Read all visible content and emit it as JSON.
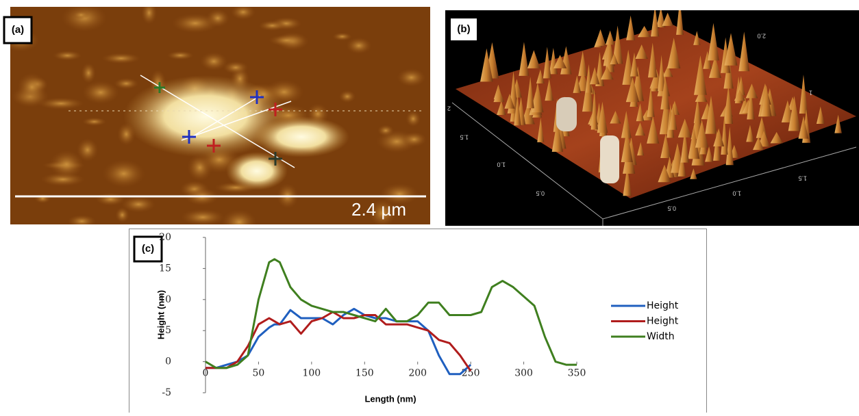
{
  "panels": {
    "a": {
      "label": "(a)",
      "scale_bar": "2.4 µm"
    },
    "b": {
      "label": "(b)",
      "axis_labels_left": [
        "2",
        "1.5",
        "1.0",
        "0.5"
      ],
      "axis_labels_bottom": [
        "0.5",
        "1.0",
        "1.5"
      ],
      "axis_labels_right": [
        "2.0",
        "1"
      ]
    },
    "c": {
      "label": "(c)"
    }
  },
  "chart_data": {
    "type": "line",
    "x_label": "Length (nm)",
    "y_label": "Height (nm)",
    "x": [
      0,
      10,
      20,
      30,
      40,
      50,
      60,
      65,
      70,
      80,
      90,
      100,
      110,
      120,
      130,
      140,
      150,
      160,
      170,
      180,
      190,
      200,
      210,
      220,
      230,
      240,
      250,
      260,
      270,
      280,
      290,
      300,
      310,
      320,
      330,
      340,
      350
    ],
    "series": [
      {
        "name": "Height",
        "color": "#1f5fbf",
        "values": [
          -1,
          -1,
          -0.5,
          0,
          1,
          4,
          5.5,
          6,
          6,
          8.3,
          7,
          7,
          7,
          6,
          7.5,
          8.5,
          7.5,
          7,
          7,
          6.5,
          6.5,
          6.5,
          5,
          1,
          -2,
          -2,
          -0.5,
          null,
          null,
          null,
          null,
          null,
          null,
          null,
          null,
          null,
          null
        ]
      },
      {
        "name": "Height",
        "color": "#b01c1c",
        "values": [
          -1,
          -1,
          -1,
          0,
          2.5,
          6,
          7,
          6.5,
          6,
          6.5,
          4.5,
          6.5,
          7,
          8,
          7,
          7,
          7.5,
          7.5,
          6,
          6,
          6,
          5.5,
          5,
          3.5,
          3,
          1,
          -1.5,
          null,
          null,
          null,
          null,
          null,
          null,
          null,
          null,
          null,
          null
        ]
      },
      {
        "name": "Width",
        "color": "#3f7f1f",
        "values": [
          0,
          -1,
          -1,
          -0.5,
          1,
          10,
          16,
          16.5,
          16,
          12,
          10,
          9,
          8.5,
          8,
          8,
          7.5,
          7,
          6.5,
          8.5,
          6.5,
          6.5,
          7.5,
          9.5,
          9.5,
          7.5,
          7.5,
          7.5,
          8,
          12,
          13,
          12,
          10.5,
          9,
          4,
          0,
          -0.5,
          -0.5
        ]
      }
    ],
    "xlim": [
      0,
      350
    ],
    "xticks": [
      0,
      50,
      100,
      150,
      200,
      250,
      300,
      350
    ],
    "ylim": [
      -5,
      20
    ],
    "yticks": [
      -5,
      0,
      5,
      10,
      15,
      20
    ],
    "legend": "right"
  }
}
